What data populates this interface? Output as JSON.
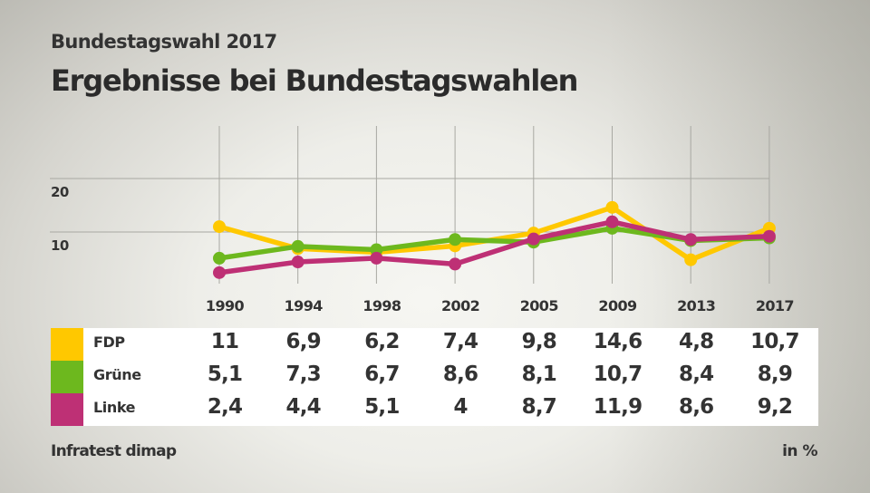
{
  "header": {
    "kicker": "Bundestagswahl 2017",
    "title": "Ergebnisse bei Bundestagswahlen"
  },
  "footer": {
    "source": "Infratest dimap",
    "unit": "in %"
  },
  "chart_data": {
    "type": "line",
    "title": "Ergebnisse bei Bundestagswahlen",
    "subtitle": "Bundestagswahl 2017",
    "xlabel": "",
    "ylabel": "",
    "categories": [
      "1990",
      "1994",
      "1998",
      "2002",
      "2005",
      "2009",
      "2013",
      "2017"
    ],
    "yticks": [
      10,
      20
    ],
    "ytick_labels": [
      "10",
      "20"
    ],
    "ylim": [
      0,
      30
    ],
    "grid": true,
    "legend": "table-bottom",
    "series": [
      {
        "name": "FDP",
        "color": "#FFC800",
        "values": [
          11,
          6.9,
          6.2,
          7.4,
          9.8,
          14.6,
          4.8,
          10.7
        ],
        "labels": [
          "11",
          "6,9",
          "6,2",
          "7,4",
          "9,8",
          "14,6",
          "4,8",
          "10,7"
        ]
      },
      {
        "name": "Grüne",
        "color": "#6DB81E",
        "values": [
          5.1,
          7.3,
          6.7,
          8.6,
          8.1,
          10.7,
          8.4,
          8.9
        ],
        "labels": [
          "5,1",
          "7,3",
          "6,7",
          "8,6",
          "8,1",
          "10,7",
          "8,4",
          "8,9"
        ]
      },
      {
        "name": "Linke",
        "color": "#BE3075",
        "values": [
          2.4,
          4.4,
          5.1,
          4,
          8.7,
          11.9,
          8.6,
          9.2
        ],
        "labels": [
          "2,4",
          "4,4",
          "5,1",
          "4",
          "8,7",
          "11,9",
          "8,6",
          "9,2"
        ]
      }
    ],
    "source": "Infratest dimap",
    "unit": "in %"
  }
}
